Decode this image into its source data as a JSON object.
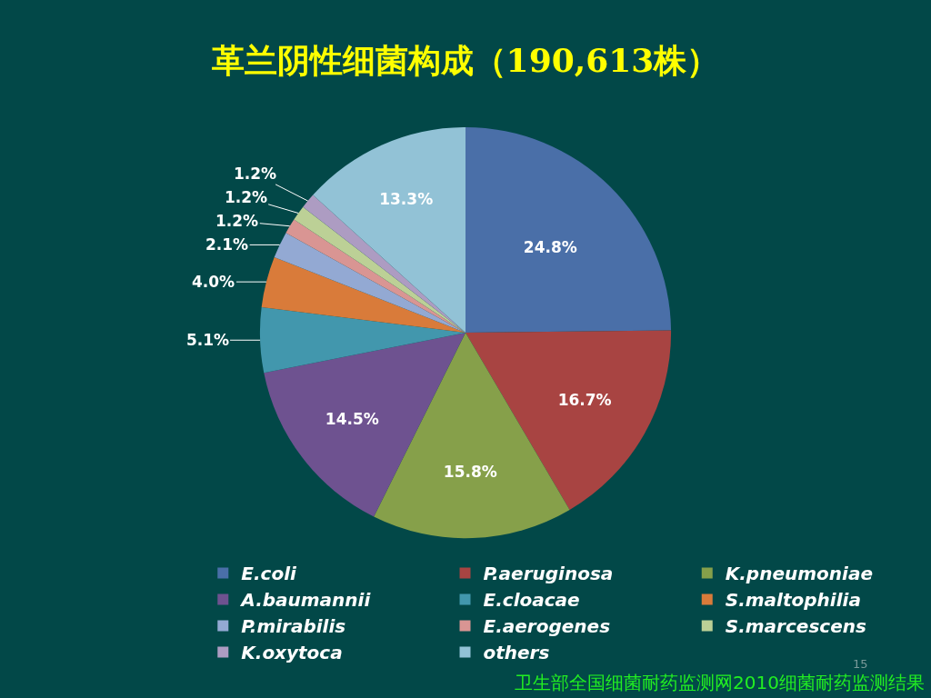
{
  "chart_data": {
    "type": "pie",
    "title": "革兰阴性细菌构成（190,613株）",
    "categories": [
      "E.coli",
      "P.aeruginosa",
      "K.pneumoniae",
      "A.baumannii",
      "E.cloacae",
      "S.maltophilia",
      "P.mirabilis",
      "E.aerogenes",
      "S.marcescens",
      "K.oxytoca",
      "others"
    ],
    "values": [
      24.8,
      16.7,
      15.8,
      14.5,
      5.1,
      4.0,
      2.1,
      1.2,
      1.2,
      1.2,
      13.3
    ],
    "value_labels": [
      "24.8%",
      "16.7%",
      "15.8%",
      "14.5%",
      "5.1%",
      "4.0%",
      "2.1%",
      "1.2%",
      "1.2%",
      "1.2%",
      "13.3%"
    ],
    "colors": [
      "#4a6fa8",
      "#a84442",
      "#86a04a",
      "#6e5290",
      "#4297ad",
      "#d97b3a",
      "#93a9d3",
      "#d99593",
      "#bcd096",
      "#ad9cc2",
      "#92c2d6"
    ],
    "legend": "bottom",
    "annotations": [
      "15",
      "卫生部全国细菌耐药监测网2010细菌耐药监测结果"
    ]
  }
}
